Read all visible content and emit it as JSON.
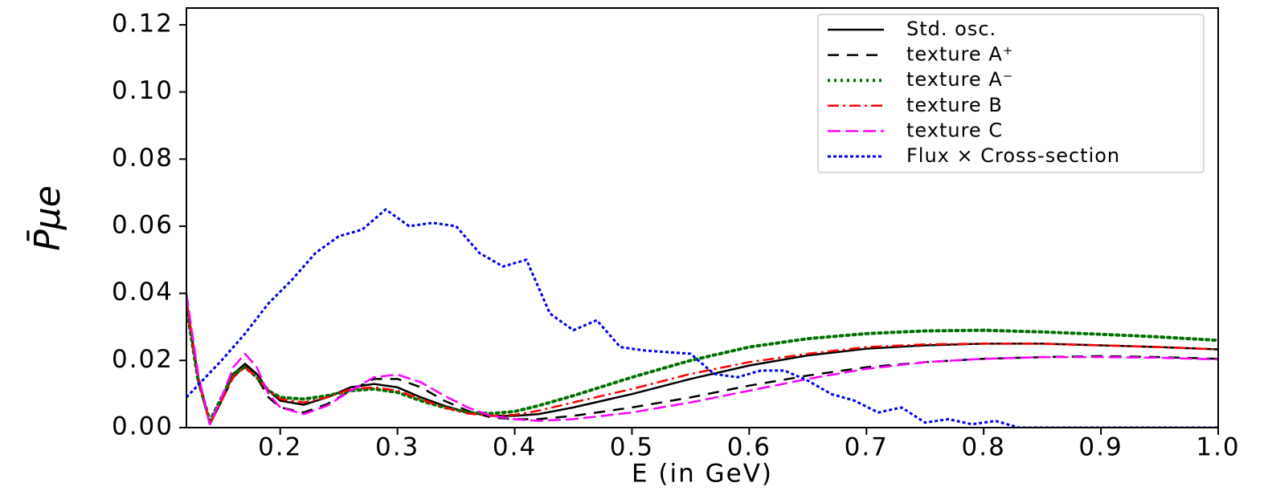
{
  "chart_data": {
    "type": "line",
    "xlabel": "E (in GeV)",
    "ylabel": "P̄μe",
    "xlim": [
      0.12,
      1.0
    ],
    "ylim": [
      0,
      0.125
    ],
    "xticks": [
      0.2,
      0.3,
      0.4,
      0.5,
      0.6,
      0.7,
      0.8,
      0.9,
      {
        "value": 1.0,
        "label": "1.0"
      }
    ],
    "yticks": [
      {
        "value": 0,
        "label": "0.00"
      },
      {
        "value": 0.02,
        "label": "0.02"
      },
      {
        "value": 0.04,
        "label": "0.04"
      },
      {
        "value": 0.06,
        "label": "0.06"
      },
      {
        "value": 0.08,
        "label": "0.08"
      },
      {
        "value": 0.1,
        "label": "0.10"
      },
      {
        "value": 0.12,
        "label": "0.12"
      }
    ],
    "legend": "upper right",
    "x": [
      0.12,
      0.13,
      0.14,
      0.15,
      0.16,
      0.17,
      0.18,
      0.19,
      0.2,
      0.22,
      0.24,
      0.26,
      0.28,
      0.3,
      0.32,
      0.34,
      0.36,
      0.38,
      0.4,
      0.42,
      0.45,
      0.5,
      0.55,
      0.6,
      0.65,
      0.7,
      0.75,
      0.8,
      0.85,
      0.9,
      0.95,
      1.0
    ],
    "series": [
      {
        "name": "Std. osc.",
        "color": "#000000",
        "dash": "none",
        "values": [
          0.038,
          0.015,
          0.001,
          0.008,
          0.016,
          0.019,
          0.016,
          0.011,
          0.008,
          0.0068,
          0.009,
          0.012,
          0.013,
          0.012,
          0.009,
          0.0065,
          0.0045,
          0.0035,
          0.0035,
          0.004,
          0.006,
          0.01,
          0.0145,
          0.0185,
          0.0215,
          0.0235,
          0.0245,
          0.025,
          0.025,
          0.0245,
          0.024,
          0.0233
        ]
      },
      {
        "name": "texture A⁺",
        "color": "#000000",
        "dash": "14,10",
        "values": [
          0.037,
          0.014,
          0.001,
          0.008,
          0.015,
          0.0185,
          0.015,
          0.009,
          0.006,
          0.0045,
          0.007,
          0.011,
          0.0145,
          0.0145,
          0.012,
          0.008,
          0.005,
          0.003,
          0.0025,
          0.0025,
          0.0035,
          0.006,
          0.009,
          0.0125,
          0.0155,
          0.018,
          0.0195,
          0.0205,
          0.021,
          0.0213,
          0.021,
          0.0205
        ]
      },
      {
        "name": "texture A⁻",
        "color": "#007000",
        "dash": "3,5",
        "values": [
          0.036,
          0.014,
          0.002,
          0.009,
          0.016,
          0.018,
          0.015,
          0.011,
          0.009,
          0.0085,
          0.0095,
          0.011,
          0.0115,
          0.0105,
          0.008,
          0.006,
          0.0045,
          0.0042,
          0.0048,
          0.0065,
          0.0095,
          0.015,
          0.02,
          0.024,
          0.0265,
          0.028,
          0.0288,
          0.029,
          0.0285,
          0.0278,
          0.027,
          0.026
        ]
      },
      {
        "name": "texture B",
        "color": "#ff0000",
        "dash": "14,5,3,5",
        "values": [
          0.038,
          0.015,
          0.001,
          0.008,
          0.015,
          0.018,
          0.015,
          0.011,
          0.0085,
          0.0075,
          0.009,
          0.0115,
          0.012,
          0.011,
          0.0085,
          0.006,
          0.0042,
          0.0035,
          0.0038,
          0.005,
          0.0075,
          0.0115,
          0.016,
          0.0195,
          0.022,
          0.024,
          0.0248,
          0.025,
          0.025,
          0.0245,
          0.024,
          0.0233
        ]
      },
      {
        "name": "texture C",
        "color": "#ff00ff",
        "dash": "16,6",
        "values": [
          0.04,
          0.016,
          0.001,
          0.009,
          0.018,
          0.022,
          0.018,
          0.01,
          0.006,
          0.004,
          0.0065,
          0.011,
          0.015,
          0.0158,
          0.0135,
          0.0095,
          0.006,
          0.0035,
          0.0025,
          0.002,
          0.0025,
          0.0045,
          0.0075,
          0.011,
          0.0145,
          0.0175,
          0.0195,
          0.0205,
          0.021,
          0.021,
          0.0208,
          0.0203
        ]
      },
      {
        "name": "Flux × Cross-section",
        "color": "#0000ee",
        "dash": "4,3",
        "x": [
          0.12,
          0.15,
          0.17,
          0.19,
          0.21,
          0.23,
          0.25,
          0.27,
          0.29,
          0.31,
          0.33,
          0.35,
          0.37,
          0.39,
          0.41,
          0.43,
          0.45,
          0.47,
          0.49,
          0.51,
          0.55,
          0.57,
          0.59,
          0.61,
          0.63,
          0.65,
          0.67,
          0.69,
          0.71,
          0.73,
          0.75,
          0.77,
          0.79,
          0.81,
          0.83,
          0.9,
          1.0
        ],
        "values": [
          0.009,
          0.02,
          0.028,
          0.037,
          0.044,
          0.052,
          0.057,
          0.059,
          0.065,
          0.06,
          0.061,
          0.06,
          0.052,
          0.048,
          0.05,
          0.034,
          0.029,
          0.032,
          0.024,
          0.023,
          0.022,
          0.016,
          0.015,
          0.017,
          0.017,
          0.014,
          0.01,
          0.008,
          0.0045,
          0.006,
          0.0015,
          0.0025,
          0.001,
          0.002,
          0,
          0,
          0
        ]
      }
    ]
  }
}
